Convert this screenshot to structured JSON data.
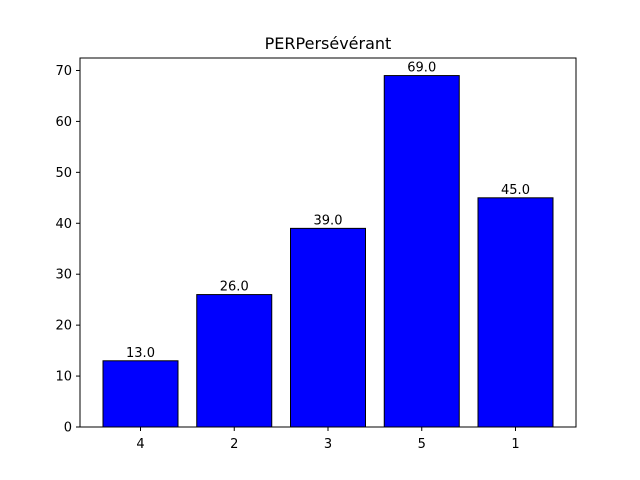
{
  "chart_data": {
    "type": "bar",
    "title": "PERPersévérant",
    "xlabel": "",
    "ylabel": "",
    "categories": [
      "4",
      "2",
      "3",
      "5",
      "1"
    ],
    "values": [
      13.0,
      26.0,
      39.0,
      69.0,
      45.0
    ],
    "value_labels": [
      "13.0",
      "26.0",
      "39.0",
      "69.0",
      "45.0"
    ],
    "ylim": [
      0,
      72.45
    ],
    "yticks": [
      0,
      10,
      20,
      30,
      40,
      50,
      60,
      70
    ],
    "grid": false,
    "bar_color": "#0000ff",
    "edge_color": "#000000"
  }
}
